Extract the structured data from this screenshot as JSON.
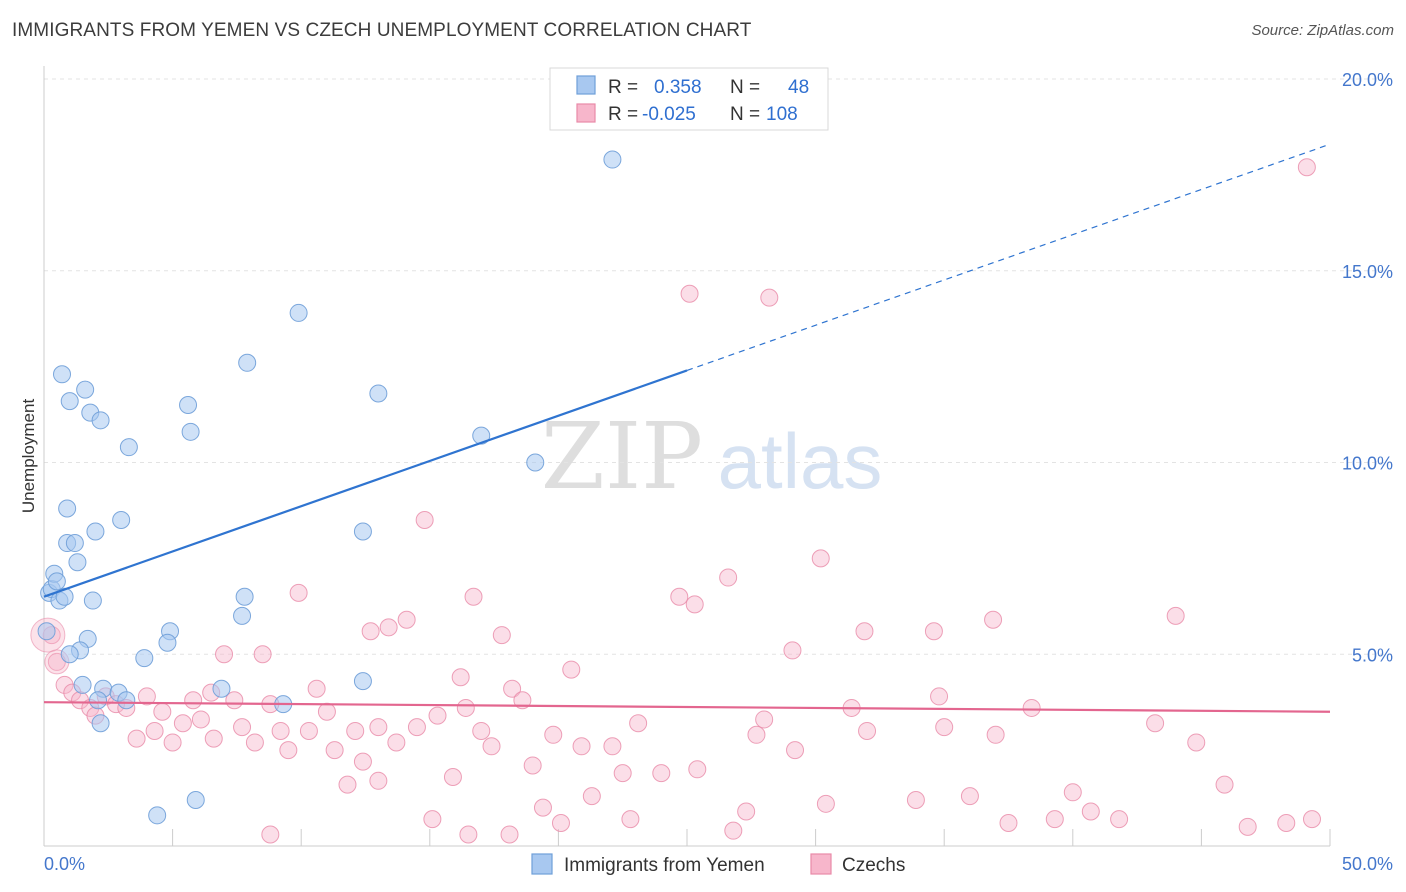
{
  "header": {
    "title": "IMMIGRANTS FROM YEMEN VS CZECH UNEMPLOYMENT CORRELATION CHART",
    "source": "Source: ZipAtlas.com"
  },
  "watermark": {
    "part1": "ZIP",
    "part2": "atlas"
  },
  "colors": {
    "blue_fill": "#a8c8f0",
    "blue_stroke": "#6f9fd8",
    "blue_line": "#2f74d0",
    "pink_fill": "#f7b6cb",
    "pink_stroke": "#e88aa8",
    "pink_line": "#e3668f",
    "axis_text": "#4477cc",
    "grid": "#e3e3e3"
  },
  "chart_data": {
    "type": "scatter",
    "title": "IMMIGRANTS FROM YEMEN VS CZECH UNEMPLOYMENT CORRELATION CHART",
    "xlabel": "",
    "ylabel": "Unemployment",
    "xlim": [
      0,
      50
    ],
    "ylim": [
      0,
      20
    ],
    "x_tick_labels": [
      "0.0%",
      "50.0%"
    ],
    "y_ticks": [
      5,
      10,
      15,
      20
    ],
    "y_tick_labels": [
      "5.0%",
      "10.0%",
      "15.0%",
      "20.0%"
    ],
    "grid": true,
    "legend_top": [
      {
        "r_label": "R =",
        "r_value": "0.358",
        "n_label": "N =",
        "n_value": "48",
        "color": "blue"
      },
      {
        "r_label": "R =",
        "r_value": "-0.025",
        "n_label": "N =",
        "n_value": "108",
        "color": "pink"
      }
    ],
    "legend_bottom": [
      "Immigrants from Yemen",
      "Czechs"
    ],
    "series": [
      {
        "name": "Immigrants from Yemen",
        "color": "blue",
        "trend": {
          "x0": 0,
          "y0": 6.5,
          "x1": 25,
          "y1": 12.4,
          "dash_to_x": 50,
          "dash_to_y": 18.3
        },
        "points": [
          [
            0.2,
            6.6
          ],
          [
            0.3,
            6.7
          ],
          [
            0.4,
            7.1
          ],
          [
            0.5,
            6.9
          ],
          [
            0.6,
            6.4
          ],
          [
            0.8,
            6.5
          ],
          [
            0.7,
            12.3
          ],
          [
            1.0,
            11.6
          ],
          [
            1.6,
            11.9
          ],
          [
            1.8,
            11.3
          ],
          [
            2.2,
            11.1
          ],
          [
            0.9,
            8.8
          ],
          [
            0.9,
            7.9
          ],
          [
            1.2,
            7.9
          ],
          [
            1.3,
            7.4
          ],
          [
            2.0,
            8.2
          ],
          [
            3.0,
            8.5
          ],
          [
            1.9,
            6.4
          ],
          [
            1.7,
            5.4
          ],
          [
            1.4,
            5.1
          ],
          [
            1.5,
            4.2
          ],
          [
            2.3,
            4.1
          ],
          [
            2.9,
            4.0
          ],
          [
            2.1,
            3.8
          ],
          [
            2.2,
            3.2
          ],
          [
            3.3,
            10.4
          ],
          [
            5.6,
            11.5
          ],
          [
            5.7,
            10.8
          ],
          [
            7.9,
            12.6
          ],
          [
            9.9,
            13.9
          ],
          [
            13.0,
            11.8
          ],
          [
            17.0,
            10.7
          ],
          [
            19.1,
            10.0
          ],
          [
            12.4,
            8.2
          ],
          [
            7.8,
            6.5
          ],
          [
            7.7,
            6.0
          ],
          [
            4.9,
            5.6
          ],
          [
            4.8,
            5.3
          ],
          [
            3.9,
            4.9
          ],
          [
            6.9,
            4.1
          ],
          [
            9.3,
            3.7
          ],
          [
            12.4,
            4.3
          ],
          [
            4.4,
            0.8
          ],
          [
            5.9,
            1.2
          ],
          [
            22.1,
            17.9
          ],
          [
            0.1,
            5.6
          ],
          [
            1.0,
            5.0
          ],
          [
            3.2,
            3.8
          ]
        ]
      },
      {
        "name": "Czechs",
        "color": "pink",
        "trend": {
          "x0": 0,
          "y0": 3.75,
          "x1": 50,
          "y1": 3.5
        },
        "points": [
          [
            0.3,
            5.5
          ],
          [
            0.5,
            4.8
          ],
          [
            0.8,
            4.2
          ],
          [
            1.1,
            4.0
          ],
          [
            1.4,
            3.8
          ],
          [
            1.8,
            3.6
          ],
          [
            2.0,
            3.4
          ],
          [
            2.4,
            3.9
          ],
          [
            2.8,
            3.7
          ],
          [
            3.2,
            3.6
          ],
          [
            3.6,
            2.8
          ],
          [
            4.0,
            3.9
          ],
          [
            4.3,
            3.0
          ],
          [
            4.6,
            3.5
          ],
          [
            5.0,
            2.7
          ],
          [
            5.4,
            3.2
          ],
          [
            5.8,
            3.8
          ],
          [
            6.1,
            3.3
          ],
          [
            6.5,
            4.0
          ],
          [
            6.6,
            2.8
          ],
          [
            7.0,
            5.0
          ],
          [
            7.4,
            3.8
          ],
          [
            7.7,
            3.1
          ],
          [
            8.2,
            2.7
          ],
          [
            8.5,
            5.0
          ],
          [
            8.8,
            3.7
          ],
          [
            9.2,
            3.0
          ],
          [
            9.5,
            2.5
          ],
          [
            9.9,
            6.6
          ],
          [
            10.3,
            3.0
          ],
          [
            10.6,
            4.1
          ],
          [
            11.0,
            3.5
          ],
          [
            11.3,
            2.5
          ],
          [
            11.8,
            1.6
          ],
          [
            12.1,
            3.0
          ],
          [
            12.4,
            2.2
          ],
          [
            12.7,
            5.6
          ],
          [
            13.0,
            3.1
          ],
          [
            13.4,
            5.7
          ],
          [
            13.7,
            2.7
          ],
          [
            14.1,
            5.9
          ],
          [
            14.5,
            3.1
          ],
          [
            14.8,
            8.5
          ],
          [
            15.1,
            0.7
          ],
          [
            15.3,
            3.4
          ],
          [
            15.9,
            1.8
          ],
          [
            16.2,
            4.4
          ],
          [
            16.4,
            3.6
          ],
          [
            16.7,
            6.5
          ],
          [
            17.0,
            3.0
          ],
          [
            17.4,
            2.6
          ],
          [
            17.8,
            5.5
          ],
          [
            18.2,
            4.1
          ],
          [
            18.6,
            3.8
          ],
          [
            19.0,
            2.1
          ],
          [
            19.4,
            1.0
          ],
          [
            19.8,
            2.9
          ],
          [
            20.1,
            0.6
          ],
          [
            20.5,
            4.6
          ],
          [
            20.9,
            2.6
          ],
          [
            21.3,
            1.3
          ],
          [
            22.1,
            2.6
          ],
          [
            22.8,
            0.7
          ],
          [
            23.1,
            3.2
          ],
          [
            24.0,
            1.9
          ],
          [
            24.7,
            6.5
          ],
          [
            25.4,
            2.0
          ],
          [
            26.6,
            7.0
          ],
          [
            27.7,
            2.9
          ],
          [
            28.0,
            3.3
          ],
          [
            28.2,
            14.3
          ],
          [
            27.3,
            0.9
          ],
          [
            29.1,
            5.1
          ],
          [
            29.2,
            2.5
          ],
          [
            30.4,
            1.1
          ],
          [
            31.4,
            3.6
          ],
          [
            31.9,
            5.6
          ],
          [
            32.0,
            3.0
          ],
          [
            33.9,
            1.2
          ],
          [
            34.6,
            5.6
          ],
          [
            34.8,
            3.9
          ],
          [
            35.0,
            3.1
          ],
          [
            36.0,
            1.3
          ],
          [
            36.9,
            5.9
          ],
          [
            37.5,
            0.6
          ],
          [
            38.4,
            3.6
          ],
          [
            39.3,
            0.7
          ],
          [
            40.0,
            1.4
          ],
          [
            40.7,
            0.9
          ],
          [
            41.8,
            0.7
          ],
          [
            43.2,
            3.2
          ],
          [
            44.0,
            6.0
          ],
          [
            44.8,
            2.7
          ],
          [
            45.9,
            1.6
          ],
          [
            46.8,
            0.5
          ],
          [
            48.3,
            0.6
          ],
          [
            49.1,
            17.7
          ],
          [
            49.3,
            0.7
          ],
          [
            25.1,
            14.4
          ],
          [
            25.3,
            6.3
          ],
          [
            26.8,
            0.4
          ],
          [
            30.2,
            7.5
          ],
          [
            8.8,
            0.3
          ],
          [
            13.0,
            1.7
          ],
          [
            22.5,
            1.9
          ],
          [
            16.5,
            0.3
          ],
          [
            18.1,
            0.3
          ],
          [
            37.0,
            2.9
          ]
        ]
      }
    ]
  }
}
